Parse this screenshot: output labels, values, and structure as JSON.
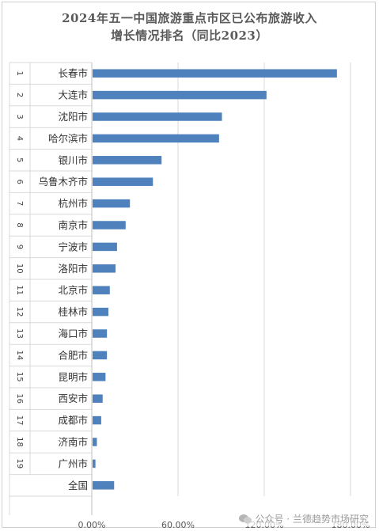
{
  "title_line1": "2024年五一中国旅游重点市区已公布旅游收入",
  "title_line2": "增长情况排名（同比2023）",
  "watermark": "公众号 · 兰德趋势市场研究",
  "colors": {
    "bar": "#4f81bd",
    "grid": "#d9d9d9",
    "text": "#595959"
  },
  "chart_data": {
    "type": "bar",
    "orientation": "horizontal",
    "rows": [
      {
        "rank": "1",
        "city": "长春市",
        "value": 170
      },
      {
        "rank": "2",
        "city": "大连市",
        "value": 121
      },
      {
        "rank": "3",
        "city": "沈阳市",
        "value": 90
      },
      {
        "rank": "4",
        "city": "哈尔滨市",
        "value": 88
      },
      {
        "rank": "5",
        "city": "银川市",
        "value": 48
      },
      {
        "rank": "6",
        "city": "乌鲁木齐市",
        "value": 42
      },
      {
        "rank": "7",
        "city": "杭州市",
        "value": 26
      },
      {
        "rank": "8",
        "city": "南京市",
        "value": 23
      },
      {
        "rank": "9",
        "city": "宁波市",
        "value": 17
      },
      {
        "rank": "10",
        "city": "洛阳市",
        "value": 16
      },
      {
        "rank": "11",
        "city": "北京市",
        "value": 12
      },
      {
        "rank": "12",
        "city": "桂林市",
        "value": 11
      },
      {
        "rank": "13",
        "city": "海口市",
        "value": 10
      },
      {
        "rank": "14",
        "city": "合肥市",
        "value": 10
      },
      {
        "rank": "15",
        "city": "昆明市",
        "value": 9
      },
      {
        "rank": "16",
        "city": "西安市",
        "value": 7
      },
      {
        "rank": "17",
        "city": "成都市",
        "value": 6
      },
      {
        "rank": "18",
        "city": "济南市",
        "value": 3
      },
      {
        "rank": "19",
        "city": "广州市",
        "value": 2
      },
      {
        "rank": "",
        "city": "全国",
        "value": 15
      }
    ],
    "xlim": [
      0,
      180
    ],
    "xticks": [
      "0.00%",
      "60.00%",
      "120.00%",
      "180.00%"
    ],
    "xtick_values": [
      0,
      60,
      120,
      180
    ],
    "grid": true,
    "unit": "%"
  }
}
